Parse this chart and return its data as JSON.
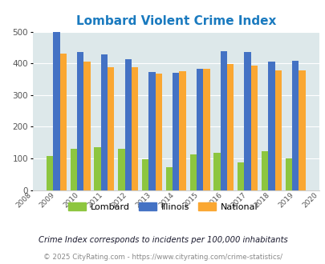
{
  "title": "Lombard Violent Crime Index",
  "years": [
    2009,
    2010,
    2011,
    2012,
    2013,
    2014,
    2015,
    2016,
    2017,
    2018,
    2019
  ],
  "lombard": [
    107,
    130,
    135,
    130,
    97,
    73,
    112,
    117,
    88,
    123,
    101
  ],
  "illinois": [
    498,
    435,
    428,
    414,
    372,
    370,
    384,
    438,
    437,
    405,
    408
  ],
  "national": [
    430,
    405,
    387,
    387,
    367,
    375,
    383,
    397,
    394,
    379,
    379
  ],
  "color_lombard": "#8dc63f",
  "color_illinois": "#4472c4",
  "color_national": "#faa732",
  "bg_color": "#dde8ea",
  "title_color": "#1a7abf",
  "footnote1_color": "#1a1a2e",
  "footnote2_color": "#888888",
  "footnote2_url_color": "#4472c4",
  "ylim": [
    0,
    500
  ],
  "yticks": [
    0,
    100,
    200,
    300,
    400,
    500
  ],
  "footnote1": "Crime Index corresponds to incidents per 100,000 inhabitants",
  "footnote2": "© 2025 CityRating.com - https://www.cityrating.com/crime-statistics/",
  "bar_width": 0.28
}
